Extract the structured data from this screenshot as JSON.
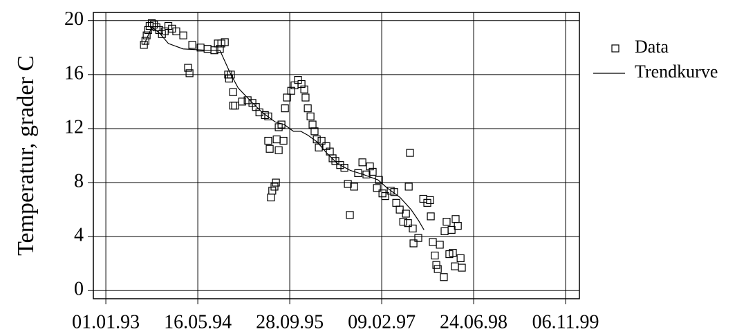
{
  "chart_data": {
    "type": "scatter",
    "ylabel": "Temperatur, grader C",
    "xlim": [
      -68,
      2575
    ],
    "ylim": [
      -0.6,
      20.6
    ],
    "xticks": [
      {
        "value": 0,
        "label": "01.01.93"
      },
      {
        "value": 500,
        "label": "16.05.94"
      },
      {
        "value": 1000,
        "label": "28.09.95"
      },
      {
        "value": 1500,
        "label": "09.02.97"
      },
      {
        "value": 2000,
        "label": "24.06.98"
      },
      {
        "value": 2500,
        "label": "06.11.99"
      }
    ],
    "yticks": [
      0,
      4,
      8,
      12,
      16,
      20
    ],
    "grid": true,
    "legend": "outside-right",
    "series": [
      {
        "name": "Data",
        "type": "scatter",
        "marker": "square",
        "color": "#000000",
        "x": [
          207,
          215,
          222,
          230,
          238,
          250,
          262,
          275,
          290,
          305,
          320,
          340,
          360,
          383,
          421,
          447,
          455,
          470,
          515,
          553,
          590,
          609,
          620,
          628,
          647,
          665,
          670,
          680,
          692,
          692,
          703,
          741,
          771,
          797,
          816,
          835,
          865,
          883,
          883,
          891,
          898,
          905,
          917,
          925,
          929,
          940,
          940,
          955,
          966,
          974,
          985,
          1008,
          1026,
          1045,
          1064,
          1079,
          1086,
          1098,
          1113,
          1124,
          1135,
          1147,
          1158,
          1173,
          1199,
          1218,
          1233,
          1248,
          1274,
          1297,
          1316,
          1327,
          1350,
          1372,
          1395,
          1417,
          1436,
          1451,
          1474,
          1485,
          1504,
          1519,
          1549,
          1568,
          1579,
          1598,
          1617,
          1632,
          1643,
          1647,
          1654,
          1669,
          1673,
          1699,
          1726,
          1748,
          1763,
          1767,
          1778,
          1789,
          1797,
          1805,
          1816,
          1838,
          1842,
          1853,
          1868,
          1880,
          1887,
          1898,
          1902,
          1914,
          1929,
          1936
        ],
        "values": [
          18.2,
          18.5,
          18.9,
          19.3,
          19.6,
          19.8,
          19.7,
          19.5,
          19.3,
          19.0,
          19.2,
          19.6,
          19.4,
          19.2,
          18.9,
          16.5,
          16.1,
          18.2,
          18.0,
          17.9,
          17.8,
          18.3,
          17.9,
          18.3,
          18.4,
          16.0,
          15.7,
          16.0,
          14.7,
          13.7,
          13.7,
          14.0,
          14.1,
          13.9,
          13.6,
          13.2,
          13.0,
          12.9,
          11.1,
          10.5,
          6.9,
          7.4,
          7.7,
          8.0,
          11.2,
          10.4,
          12.1,
          12.3,
          11.1,
          13.5,
          14.3,
          14.8,
          15.2,
          15.6,
          15.3,
          14.9,
          14.3,
          13.5,
          12.9,
          12.3,
          11.8,
          11.2,
          10.6,
          11.1,
          10.7,
          10.3,
          9.8,
          9.6,
          9.3,
          9.1,
          7.9,
          5.6,
          7.7,
          8.7,
          9.5,
          8.6,
          9.2,
          8.8,
          7.6,
          8.2,
          7.2,
          7.0,
          7.4,
          7.3,
          6.5,
          6.0,
          5.1,
          5.7,
          5.0,
          7.7,
          10.2,
          4.6,
          3.5,
          3.9,
          6.8,
          6.5,
          6.7,
          5.5,
          3.6,
          2.6,
          1.9,
          1.6,
          3.4,
          1.0,
          4.4,
          5.1,
          2.7,
          4.5,
          2.8,
          1.8,
          5.3,
          4.8,
          2.4,
          1.7
        ]
      },
      {
        "name": "Trendkurve",
        "type": "line",
        "color": "#000000",
        "x": [
          207,
          250,
          290,
          340,
          420,
          550,
          620,
          680,
          720,
          790,
          850,
          920,
          970,
          1020,
          1060,
          1100,
          1150,
          1200,
          1260,
          1330,
          1400,
          1480,
          1530,
          1600,
          1660,
          1700,
          1730
        ],
        "values": [
          18.2,
          19.5,
          19.1,
          18.3,
          17.9,
          17.8,
          17.8,
          16.0,
          15.0,
          14.0,
          13.2,
          12.5,
          12.3,
          11.8,
          11.8,
          11.5,
          11.0,
          10.2,
          9.4,
          8.9,
          8.6,
          8.2,
          7.6,
          6.9,
          6.0,
          5.2,
          4.5
        ]
      }
    ]
  }
}
